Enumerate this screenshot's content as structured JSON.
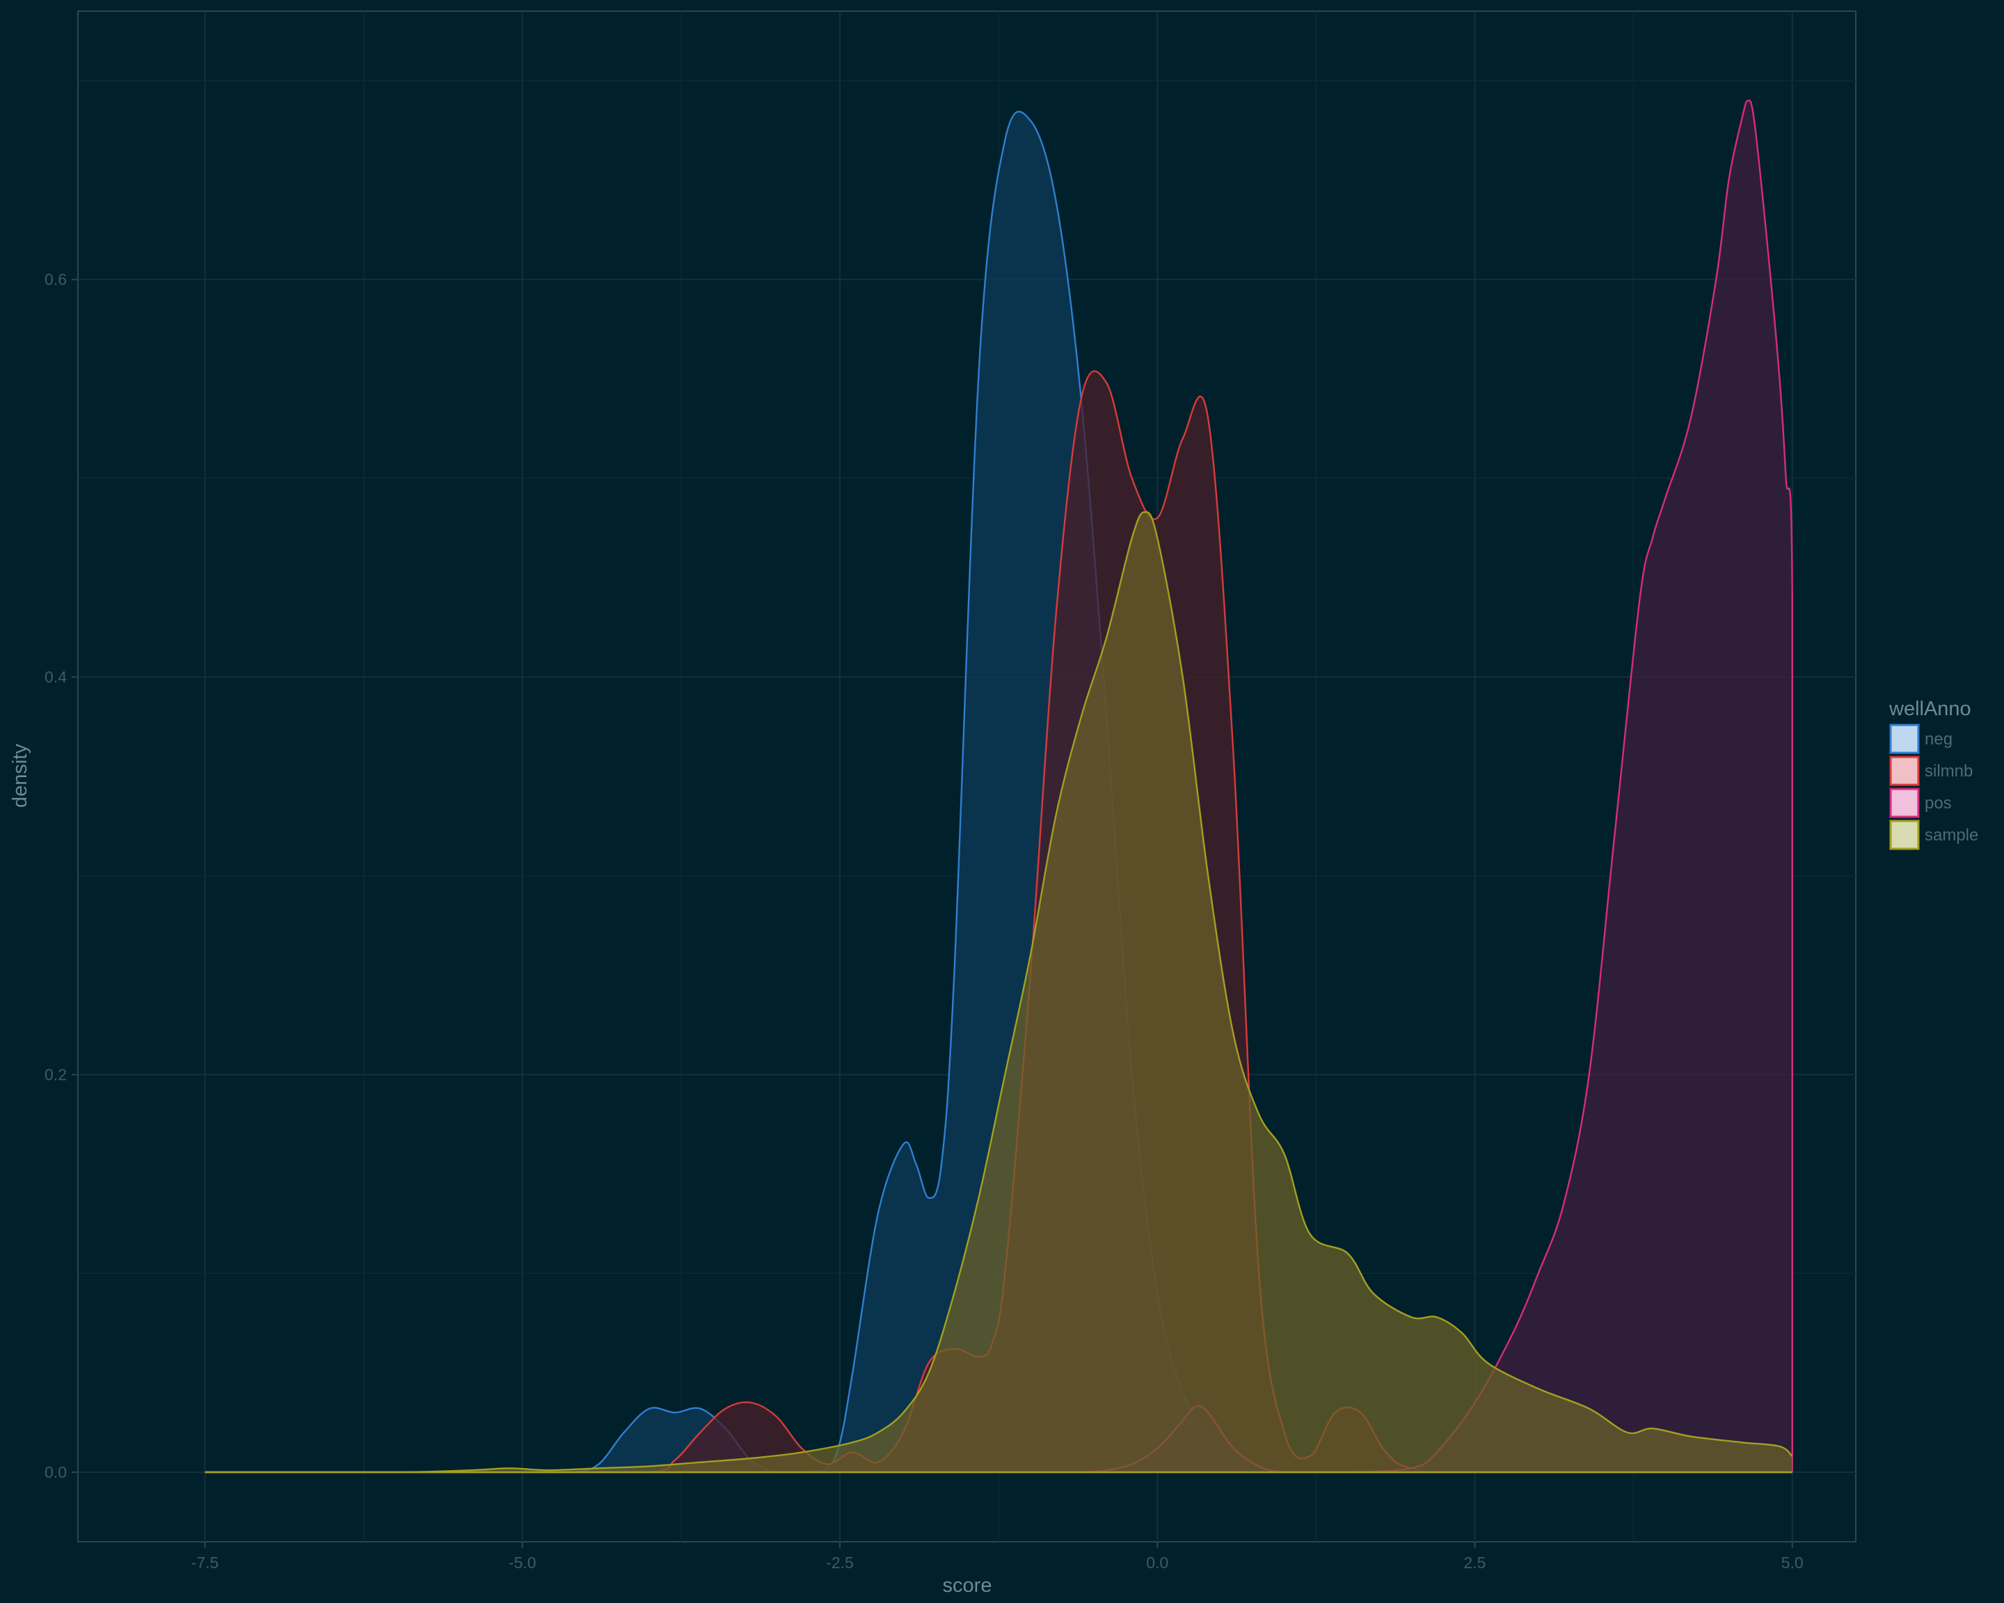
{
  "chart_data": {
    "type": "area",
    "title": "",
    "xlabel": "score",
    "ylabel": "density",
    "xlim": [
      -8.5,
      5.5
    ],
    "ylim": [
      -0.035,
      0.735
    ],
    "x_ticks": [
      -7.5,
      -5.0,
      -2.5,
      0.0,
      2.5,
      5.0
    ],
    "x_tick_labels": [
      "-7.5",
      "-5.0",
      "-2.5",
      "0.0",
      "2.5",
      "5.0"
    ],
    "y_ticks": [
      0.0,
      0.2,
      0.4,
      0.6
    ],
    "y_tick_labels": [
      "0.0",
      "0.2",
      "0.4",
      "0.6"
    ],
    "grid": true,
    "legend": {
      "title": "wellAnno",
      "position": "right"
    },
    "series": [
      {
        "name": "neg",
        "color": "#2f7fd0",
        "fill": "#0d3a5a",
        "x": [
          -7.5,
          -5.0,
          -4.6,
          -4.4,
          -4.2,
          -4.0,
          -3.8,
          -3.6,
          -3.4,
          -3.2,
          -3.0,
          -2.8,
          -2.6,
          -2.5,
          -2.4,
          -2.2,
          -2.0,
          -1.9,
          -1.8,
          -1.7,
          -1.6,
          -1.4,
          -1.2,
          -1.0,
          -0.8,
          -0.6,
          -0.4,
          -0.2,
          0.0,
          0.2,
          0.4,
          0.6,
          0.8,
          1.0,
          1.5,
          5.0
        ],
        "y": [
          0.0,
          0.0,
          0.0,
          0.004,
          0.02,
          0.032,
          0.03,
          0.032,
          0.022,
          0.006,
          0.0,
          0.0,
          0.002,
          0.015,
          0.05,
          0.13,
          0.165,
          0.155,
          0.138,
          0.155,
          0.25,
          0.56,
          0.67,
          0.68,
          0.64,
          0.54,
          0.38,
          0.2,
          0.09,
          0.04,
          0.02,
          0.008,
          0.002,
          0.0,
          0.0,
          0.0
        ]
      },
      {
        "name": "silmnb",
        "color": "#d83a3a",
        "fill": "#4a1f2a",
        "x": [
          -7.5,
          -5.0,
          -4.0,
          -3.8,
          -3.6,
          -3.4,
          -3.2,
          -3.0,
          -2.8,
          -2.6,
          -2.4,
          -2.2,
          -2.0,
          -1.8,
          -1.6,
          -1.4,
          -1.3,
          -1.2,
          -1.0,
          -0.8,
          -0.6,
          -0.4,
          -0.2,
          0.0,
          0.2,
          0.4,
          0.6,
          0.8,
          1.0,
          1.2,
          1.4,
          1.6,
          1.8,
          2.0,
          2.5,
          5.0
        ],
        "y": [
          0.0,
          0.0,
          0.0,
          0.006,
          0.02,
          0.032,
          0.035,
          0.028,
          0.012,
          0.004,
          0.01,
          0.005,
          0.02,
          0.055,
          0.062,
          0.058,
          0.065,
          0.1,
          0.25,
          0.43,
          0.54,
          0.548,
          0.5,
          0.48,
          0.52,
          0.53,
          0.36,
          0.1,
          0.02,
          0.008,
          0.03,
          0.03,
          0.01,
          0.002,
          0.0,
          0.0
        ]
      },
      {
        "name": "pos",
        "color": "#d82a80",
        "fill": "#3d1d40",
        "x": [
          -0.6,
          -0.4,
          -0.2,
          0.0,
          0.2,
          0.3,
          0.4,
          0.6,
          0.8,
          1.0,
          1.5,
          2.0,
          2.2,
          2.5,
          2.8,
          3.0,
          3.2,
          3.4,
          3.6,
          3.8,
          3.9,
          4.0,
          4.2,
          4.4,
          4.5,
          4.6,
          4.65,
          4.7,
          4.8,
          4.9,
          4.95,
          5.0,
          5.0
        ],
        "y": [
          0.0,
          0.001,
          0.004,
          0.012,
          0.026,
          0.033,
          0.03,
          0.012,
          0.003,
          0.0,
          0.0,
          0.002,
          0.01,
          0.035,
          0.07,
          0.1,
          0.135,
          0.2,
          0.32,
          0.44,
          0.47,
          0.49,
          0.53,
          0.6,
          0.65,
          0.68,
          0.69,
          0.68,
          0.62,
          0.55,
          0.5,
          0.44,
          0.0
        ]
      },
      {
        "name": "sample",
        "color": "#a3a020",
        "fill": "#6a6028",
        "x": [
          -7.5,
          -6.0,
          -5.4,
          -5.1,
          -4.8,
          -4.4,
          -4.0,
          -3.6,
          -3.2,
          -2.8,
          -2.4,
          -2.2,
          -2.0,
          -1.8,
          -1.6,
          -1.4,
          -1.2,
          -1.0,
          -0.8,
          -0.6,
          -0.4,
          -0.2,
          -0.1,
          0.0,
          0.2,
          0.4,
          0.6,
          0.8,
          1.0,
          1.2,
          1.5,
          1.7,
          2.0,
          2.2,
          2.4,
          2.6,
          3.0,
          3.4,
          3.7,
          3.9,
          4.2,
          4.6,
          4.9,
          5.0
        ],
        "y": [
          0.0,
          0.0,
          0.001,
          0.002,
          0.001,
          0.002,
          0.003,
          0.005,
          0.007,
          0.01,
          0.015,
          0.02,
          0.03,
          0.05,
          0.09,
          0.14,
          0.2,
          0.26,
          0.33,
          0.38,
          0.42,
          0.47,
          0.483,
          0.47,
          0.4,
          0.3,
          0.22,
          0.18,
          0.16,
          0.12,
          0.11,
          0.09,
          0.078,
          0.078,
          0.07,
          0.055,
          0.042,
          0.032,
          0.02,
          0.022,
          0.018,
          0.015,
          0.013,
          0.008
        ]
      }
    ]
  }
}
